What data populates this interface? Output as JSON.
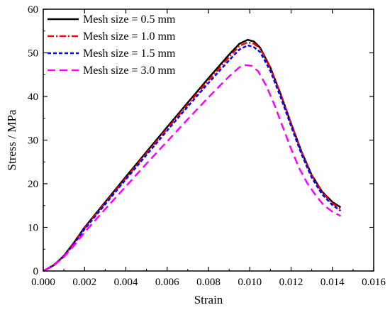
{
  "chart_data": {
    "type": "line",
    "xlabel": "Strain",
    "ylabel": "Stress / MPa",
    "xlim": [
      0.0,
      0.016
    ],
    "ylim": [
      0,
      60
    ],
    "x_ticks": [
      "0.000",
      "0.002",
      "0.004",
      "0.006",
      "0.008",
      "0.010",
      "0.012",
      "0.014",
      "0.016"
    ],
    "y_ticks": [
      "0",
      "10",
      "20",
      "30",
      "40",
      "50",
      "60"
    ],
    "x_tick_values": [
      0.0,
      0.002,
      0.004,
      0.006,
      0.008,
      0.01,
      0.012,
      0.014,
      0.016
    ],
    "y_tick_values": [
      0,
      10,
      20,
      30,
      40,
      50,
      60
    ],
    "grid": false,
    "legend_position": "top-left",
    "series": [
      {
        "name": "Mesh size = 0.5 mm",
        "color": "#000000",
        "dash": "solid",
        "x": [
          0.0,
          0.0005,
          0.001,
          0.0015,
          0.002,
          0.003,
          0.004,
          0.005,
          0.006,
          0.007,
          0.008,
          0.009,
          0.0095,
          0.0099,
          0.0102,
          0.0105,
          0.011,
          0.0115,
          0.012,
          0.0125,
          0.013,
          0.0135,
          0.014,
          0.0144
        ],
        "y": [
          0,
          1.3,
          3.5,
          6.6,
          10.0,
          15.8,
          21.6,
          27.3,
          33.0,
          38.6,
          44.2,
          49.6,
          52.1,
          53.0,
          52.6,
          51.2,
          46.6,
          40.5,
          33.8,
          27.4,
          22.0,
          18.2,
          15.8,
          14.6
        ]
      },
      {
        "name": "Mesh size = 1.0 mm",
        "color": "#ff0000",
        "dash": "dashdot",
        "x": [
          0.0,
          0.0005,
          0.001,
          0.0015,
          0.002,
          0.003,
          0.004,
          0.005,
          0.006,
          0.007,
          0.008,
          0.009,
          0.0095,
          0.0099,
          0.0102,
          0.0105,
          0.011,
          0.0115,
          0.012,
          0.0125,
          0.013,
          0.0135,
          0.014,
          0.0144
        ],
        "y": [
          0,
          1.3,
          3.4,
          6.5,
          9.8,
          15.6,
          21.3,
          27.0,
          32.6,
          38.2,
          43.7,
          49.0,
          51.6,
          52.4,
          52.1,
          51.0,
          46.5,
          40.5,
          33.8,
          27.3,
          21.9,
          18.0,
          15.5,
          14.2
        ]
      },
      {
        "name": "Mesh size = 1.5 mm",
        "color": "#0000ff",
        "dash": "dash",
        "x": [
          0.0,
          0.0005,
          0.001,
          0.0015,
          0.002,
          0.003,
          0.004,
          0.005,
          0.006,
          0.007,
          0.008,
          0.009,
          0.0095,
          0.0099,
          0.0102,
          0.0105,
          0.011,
          0.0115,
          0.012,
          0.0125,
          0.013,
          0.0135,
          0.014,
          0.0144
        ],
        "y": [
          0,
          1.3,
          3.3,
          6.3,
          9.6,
          15.3,
          21.0,
          26.6,
          32.2,
          37.7,
          43.1,
          48.3,
          50.8,
          51.7,
          51.3,
          50.2,
          45.8,
          39.8,
          33.2,
          26.8,
          21.4,
          17.6,
          15.1,
          13.8
        ]
      },
      {
        "name": "Mesh size = 3.0 mm",
        "color": "#ff00ff",
        "dash": "longdash",
        "x": [
          0.0,
          0.0005,
          0.001,
          0.0015,
          0.002,
          0.003,
          0.004,
          0.005,
          0.006,
          0.007,
          0.008,
          0.009,
          0.0095,
          0.0098,
          0.0101,
          0.0104,
          0.0108,
          0.0112,
          0.0116,
          0.012,
          0.0124,
          0.0128,
          0.0132,
          0.0136,
          0.014,
          0.0144
        ],
        "y": [
          0,
          1.2,
          3.2,
          5.9,
          8.9,
          14.2,
          19.4,
          24.6,
          29.7,
          34.8,
          39.8,
          44.6,
          46.7,
          47.2,
          47.0,
          45.8,
          42.4,
          38.0,
          33.0,
          28.0,
          23.5,
          20.0,
          17.3,
          15.0,
          13.6,
          12.6
        ]
      }
    ]
  }
}
